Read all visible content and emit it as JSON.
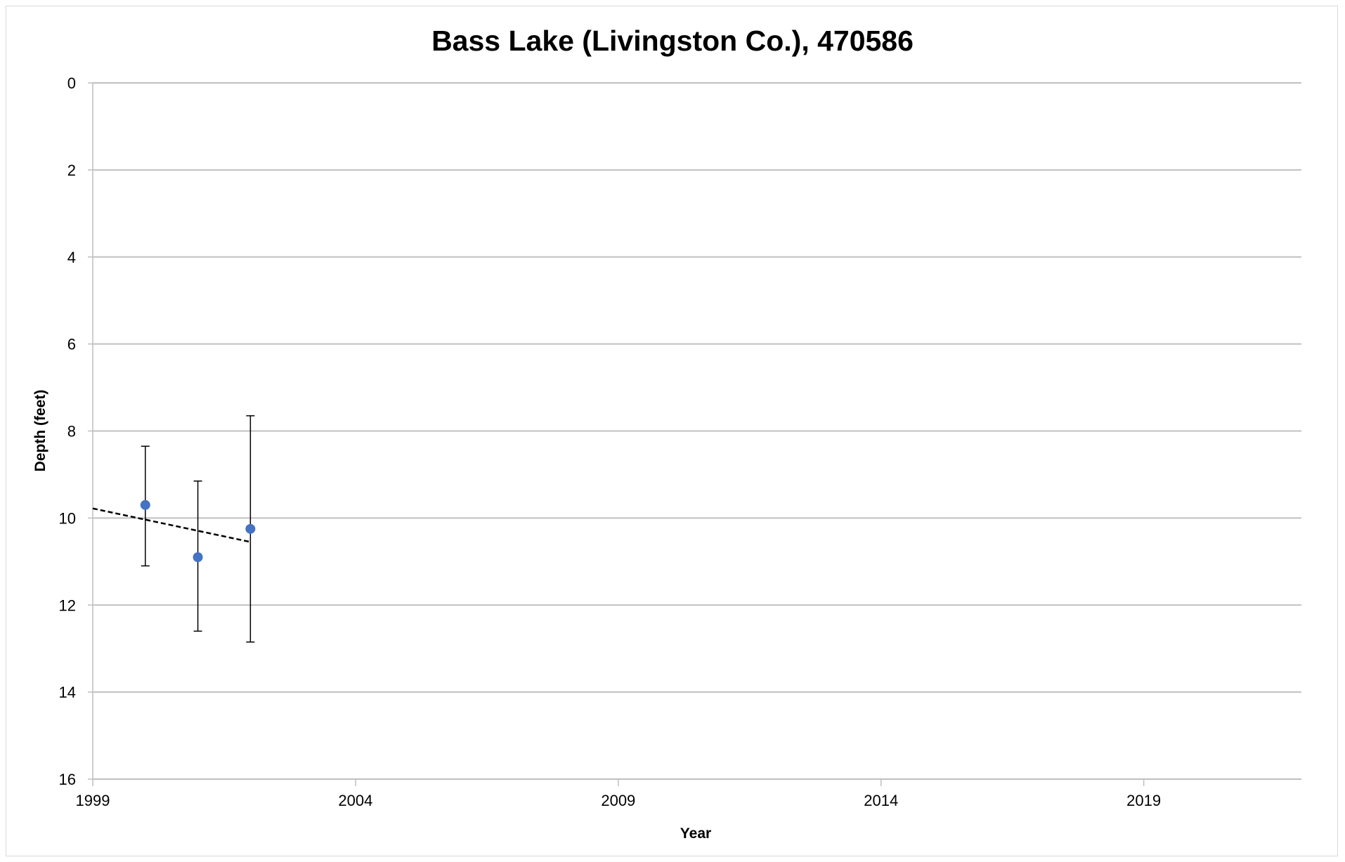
{
  "chart_data": {
    "type": "scatter",
    "title": "Bass Lake (Livingston Co.), 470586",
    "xlabel": "Year",
    "ylabel": "Depth (feet)",
    "xlim": [
      1999,
      2022
    ],
    "ylim": [
      0,
      16
    ],
    "y_inverted": true,
    "x_ticks": [
      1999,
      2004,
      2009,
      2014,
      2019
    ],
    "y_ticks": [
      0,
      2,
      4,
      6,
      8,
      10,
      12,
      14,
      16
    ],
    "grid": "horizontal",
    "legend": "none",
    "series": [
      {
        "x": [
          2000,
          2001,
          2002
        ],
        "y": [
          9.7,
          10.9,
          10.25
        ],
        "y_upper": [
          8.35,
          9.15,
          7.65
        ],
        "y_lower": [
          11.1,
          12.6,
          12.85
        ],
        "color": "#4472C4"
      }
    ],
    "trendline": {
      "style": "dashed",
      "color": "#000000",
      "x": [
        1999,
        2002
      ],
      "y": [
        9.78,
        10.55
      ]
    }
  }
}
